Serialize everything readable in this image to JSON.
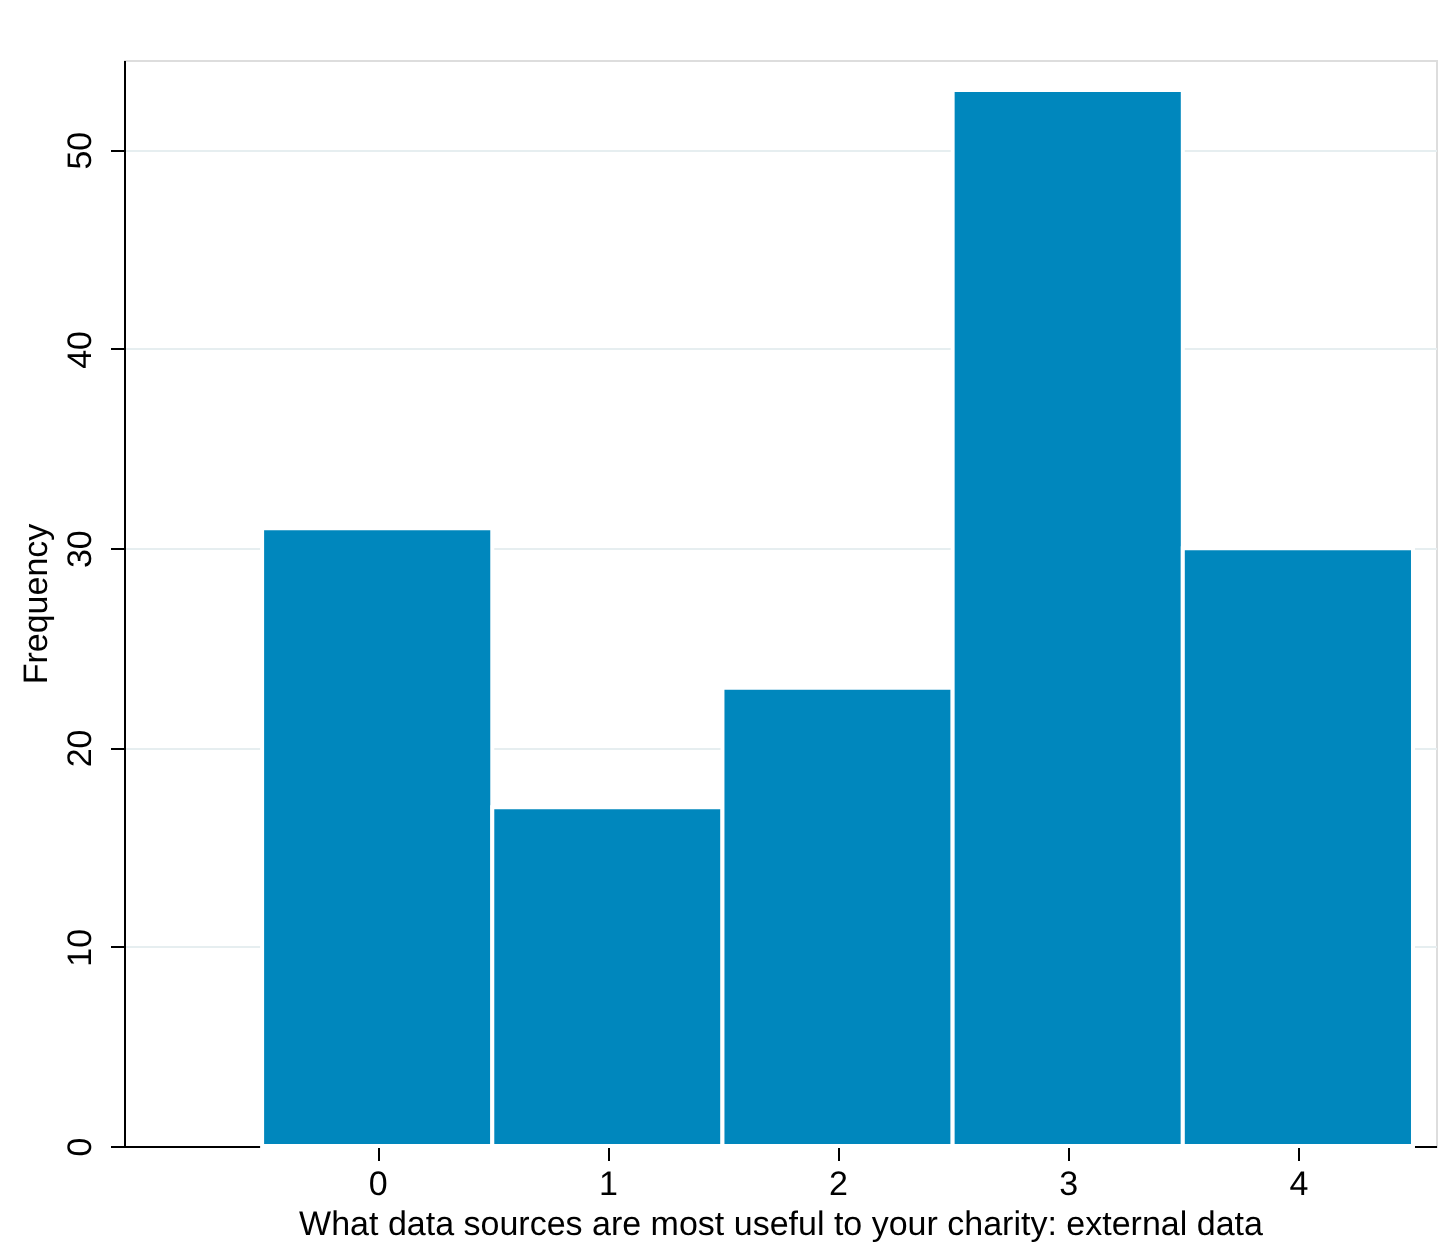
{
  "chart_data": {
    "type": "histogram",
    "xlabel": "What data sources are most useful to your charity: external data",
    "ylabel": "Frequency",
    "bins": [
      -0.5,
      0.5,
      1.5,
      2.5,
      3.5,
      4.5
    ],
    "values": [
      31,
      17,
      23,
      53,
      30
    ],
    "color": "#0087bd",
    "xlim": [
      -1.1,
      4.6
    ],
    "xticks": [
      0,
      1,
      2,
      3,
      4
    ],
    "ylim": [
      0,
      54.5
    ],
    "yticks": [
      0,
      10,
      20,
      30,
      40,
      50
    ],
    "grid": "y"
  }
}
